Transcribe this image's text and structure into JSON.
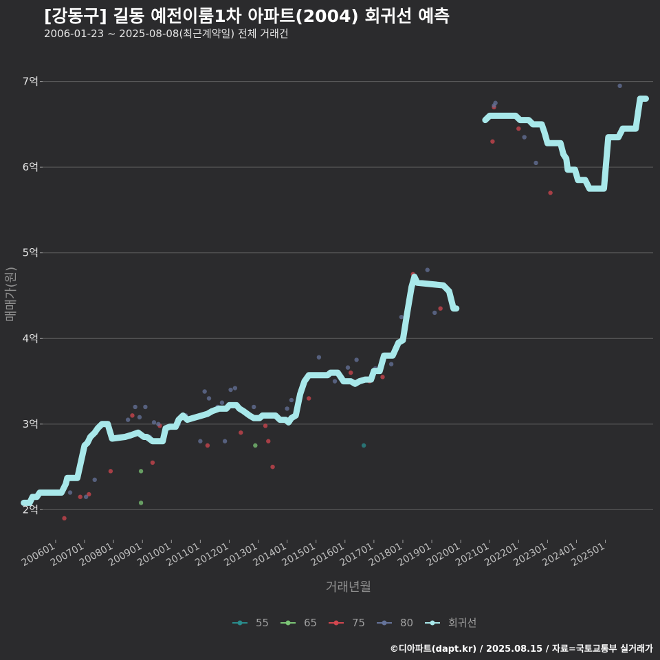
{
  "title": "[강동구] 길동 예전이룸1차 아파트(2004) 회귀선 예측",
  "subtitle": "2006-01-23 ~ 2025-08-08(최근계약일) 전체 거래건",
  "caption": "©디아파트(dapt.kr) / 2025.08.15 / 자료=국토교통부 실거래가",
  "chart_data": {
    "type": "scatter",
    "xlabel": "거래년월",
    "ylabel": "매매가(원)",
    "x_range": [
      2005.55,
      2026.65
    ],
    "ylim": [
      1.65,
      7.35
    ],
    "yticks": [
      {
        "value": 2,
        "label": "2억"
      },
      {
        "value": 3,
        "label": "3억"
      },
      {
        "value": 4,
        "label": "4억"
      },
      {
        "value": 5,
        "label": "5억"
      },
      {
        "value": 6,
        "label": "6억"
      },
      {
        "value": 7,
        "label": "7억"
      }
    ],
    "xticks": [
      {
        "value": 2006,
        "label": "200601"
      },
      {
        "value": 2007,
        "label": "200701"
      },
      {
        "value": 2008,
        "label": "200801"
      },
      {
        "value": 2009,
        "label": "200901"
      },
      {
        "value": 2010,
        "label": "201001"
      },
      {
        "value": 2011,
        "label": "201101"
      },
      {
        "value": 2012,
        "label": "201201"
      },
      {
        "value": 2013,
        "label": "201301"
      },
      {
        "value": 2014,
        "label": "201401"
      },
      {
        "value": 2015,
        "label": "201501"
      },
      {
        "value": 2016,
        "label": "201601"
      },
      {
        "value": 2017,
        "label": "201701"
      },
      {
        "value": 2018,
        "label": "201801"
      },
      {
        "value": 2019,
        "label": "201901"
      },
      {
        "value": 2020,
        "label": "202001"
      },
      {
        "value": 2021,
        "label": "202101"
      },
      {
        "value": 2022,
        "label": "202201"
      },
      {
        "value": 2023,
        "label": "202301"
      },
      {
        "value": 2024,
        "label": "202401"
      },
      {
        "value": 2025,
        "label": "202501"
      }
    ],
    "grid": true,
    "legend_position": "bottom",
    "legend": [
      {
        "name": "55",
        "color": "#2a8c8c"
      },
      {
        "name": "65",
        "color": "#7cc576"
      },
      {
        "name": "75",
        "color": "#d2474f"
      },
      {
        "name": "80",
        "color": "#65739a"
      },
      {
        "name": "회귀선",
        "color": "#a8e8ea"
      }
    ],
    "series": [
      {
        "name": "55",
        "color": "#2a8c8c",
        "points": [
          [
            2016.65,
            2.75
          ]
        ]
      },
      {
        "name": "65",
        "color": "#7cc576",
        "points": [
          [
            2008.95,
            2.45
          ],
          [
            2008.95,
            2.08
          ],
          [
            2012.9,
            2.75
          ]
        ]
      },
      {
        "name": "75",
        "color": "#d2474f",
        "points": [
          [
            2006.3,
            1.9
          ],
          [
            2006.85,
            2.15
          ],
          [
            2007.15,
            2.18
          ],
          [
            2007.9,
            2.45
          ],
          [
            2008.65,
            3.1
          ],
          [
            2009.35,
            2.55
          ],
          [
            2009.6,
            2.98
          ],
          [
            2011.25,
            2.75
          ],
          [
            2012.4,
            2.9
          ],
          [
            2013.25,
            2.98
          ],
          [
            2013.35,
            2.8
          ],
          [
            2013.5,
            2.5
          ],
          [
            2014.75,
            3.3
          ],
          [
            2016.2,
            3.6
          ],
          [
            2016.85,
            3.5
          ],
          [
            2017.3,
            3.55
          ],
          [
            2018.35,
            4.75
          ],
          [
            2019.3,
            4.35
          ],
          [
            2021.1,
            6.3
          ],
          [
            2021.15,
            6.7
          ],
          [
            2022.0,
            6.45
          ],
          [
            2023.1,
            5.7
          ],
          [
            2024.45,
            5.75
          ]
        ]
      },
      {
        "name": "80",
        "color": "#65739a",
        "points": [
          [
            2006.5,
            2.2
          ],
          [
            2007.05,
            2.15
          ],
          [
            2007.35,
            2.35
          ],
          [
            2008.5,
            3.05
          ],
          [
            2008.75,
            3.2
          ],
          [
            2008.9,
            3.08
          ],
          [
            2009.1,
            3.2
          ],
          [
            2009.25,
            2.85
          ],
          [
            2009.4,
            3.02
          ],
          [
            2009.55,
            3.0
          ],
          [
            2010.25,
            3.0
          ],
          [
            2010.5,
            3.1
          ],
          [
            2011.0,
            2.8
          ],
          [
            2011.15,
            3.38
          ],
          [
            2011.3,
            3.3
          ],
          [
            2011.6,
            3.2
          ],
          [
            2011.75,
            3.25
          ],
          [
            2011.85,
            2.8
          ],
          [
            2012.05,
            3.4
          ],
          [
            2012.2,
            3.42
          ],
          [
            2012.85,
            3.2
          ],
          [
            2014.0,
            3.18
          ],
          [
            2014.15,
            3.28
          ],
          [
            2015.1,
            3.78
          ],
          [
            2015.65,
            3.5
          ],
          [
            2016.1,
            3.66
          ],
          [
            2016.4,
            3.75
          ],
          [
            2017.05,
            3.65
          ],
          [
            2017.6,
            3.7
          ],
          [
            2017.95,
            4.25
          ],
          [
            2018.85,
            4.8
          ],
          [
            2019.1,
            4.3
          ],
          [
            2021.15,
            6.72
          ],
          [
            2021.2,
            6.75
          ],
          [
            2022.2,
            6.35
          ],
          [
            2022.6,
            6.05
          ],
          [
            2025.5,
            6.95
          ],
          [
            2026.1,
            6.65
          ]
        ]
      }
    ],
    "regression": [
      {
        "segment": 1,
        "points": [
          [
            2006.0,
            2.08
          ],
          [
            2006.2,
            2.08
          ],
          [
            2006.3,
            2.15
          ],
          [
            2006.45,
            2.15
          ],
          [
            2006.55,
            2.2
          ],
          [
            2007.3,
            2.2
          ],
          [
            2007.45,
            2.3
          ],
          [
            2007.5,
            2.37
          ],
          [
            2007.85,
            2.37
          ],
          [
            2008.1,
            2.75
          ],
          [
            2008.2,
            2.78
          ],
          [
            2008.3,
            2.85
          ],
          [
            2008.45,
            2.9
          ],
          [
            2008.55,
            2.95
          ],
          [
            2008.7,
            3.0
          ],
          [
            2008.9,
            3.0
          ],
          [
            2009.05,
            2.83
          ],
          [
            2009.5,
            2.85
          ],
          [
            2009.7,
            2.87
          ],
          [
            2009.95,
            2.9
          ],
          [
            2010.15,
            2.85
          ],
          [
            2010.25,
            2.85
          ],
          [
            2010.45,
            2.8
          ],
          [
            2010.8,
            2.8
          ],
          [
            2010.9,
            2.95
          ],
          [
            2011.05,
            2.97
          ],
          [
            2011.25,
            2.97
          ],
          [
            2011.35,
            3.05
          ],
          [
            2011.5,
            3.1
          ],
          [
            2011.65,
            3.05
          ],
          [
            2011.85,
            3.07
          ],
          [
            2012.15,
            3.1
          ],
          [
            2012.35,
            3.12
          ],
          [
            2012.5,
            3.15
          ],
          [
            2012.75,
            3.18
          ],
          [
            2013.0,
            3.18
          ],
          [
            2013.1,
            3.22
          ],
          [
            2013.35,
            3.22
          ],
          [
            2013.45,
            3.18
          ],
          [
            2013.6,
            3.15
          ],
          [
            2013.8,
            3.1
          ],
          [
            2013.95,
            3.07
          ],
          [
            2014.15,
            3.07
          ],
          [
            2014.25,
            3.1
          ],
          [
            2014.7,
            3.1
          ],
          [
            2014.85,
            3.05
          ],
          [
            2015.05,
            3.05
          ],
          [
            2015.15,
            3.02
          ],
          [
            2015.25,
            3.07
          ],
          [
            2015.4,
            3.1
          ],
          [
            2015.55,
            3.35
          ],
          [
            2015.7,
            3.5
          ],
          [
            2015.85,
            3.57
          ],
          [
            2016.5,
            3.57
          ],
          [
            2016.6,
            3.6
          ],
          [
            2016.85,
            3.6
          ],
          [
            2016.95,
            3.55
          ],
          [
            2017.05,
            3.5
          ],
          [
            2017.3,
            3.5
          ],
          [
            2017.45,
            3.47
          ],
          [
            2017.6,
            3.5
          ],
          [
            2017.8,
            3.52
          ],
          [
            2018.0,
            3.52
          ],
          [
            2018.1,
            3.62
          ],
          [
            2018.3,
            3.62
          ],
          [
            2018.45,
            3.8
          ],
          [
            2018.75,
            3.8
          ],
          [
            2018.95,
            3.95
          ],
          [
            2019.1,
            3.98
          ],
          [
            2019.25,
            4.3
          ],
          [
            2019.4,
            4.6
          ],
          [
            2019.5,
            4.72
          ],
          [
            2019.6,
            4.65
          ],
          [
            2020.5,
            4.62
          ],
          [
            2020.7,
            4.55
          ],
          [
            2020.85,
            4.35
          ],
          [
            2020.95,
            4.35
          ]
        ]
      },
      {
        "segment": 2,
        "points": [
          [
            2021.95,
            6.55
          ],
          [
            2022.1,
            6.6
          ],
          [
            2022.7,
            6.6
          ],
          [
            2023.0,
            6.6
          ],
          [
            2023.15,
            6.55
          ],
          [
            2023.45,
            6.55
          ],
          [
            2023.6,
            6.5
          ],
          [
            2023.9,
            6.5
          ],
          [
            2024.0,
            6.4
          ],
          [
            2024.1,
            6.28
          ],
          [
            2024.55,
            6.28
          ],
          [
            2024.65,
            6.15
          ],
          [
            2024.75,
            6.1
          ],
          [
            2024.8,
            5.97
          ],
          [
            2025.05,
            5.97
          ],
          [
            2025.15,
            5.85
          ],
          [
            2025.4,
            5.85
          ],
          [
            2025.55,
            5.75
          ],
          [
            2026.05,
            5.75
          ],
          [
            2026.2,
            6.35
          ],
          [
            2026.55,
            6.35
          ],
          [
            2026.7,
            6.45
          ],
          [
            2027.15,
            6.45
          ],
          [
            2027.3,
            6.8
          ],
          [
            2027.5,
            6.8
          ]
        ]
      }
    ]
  }
}
